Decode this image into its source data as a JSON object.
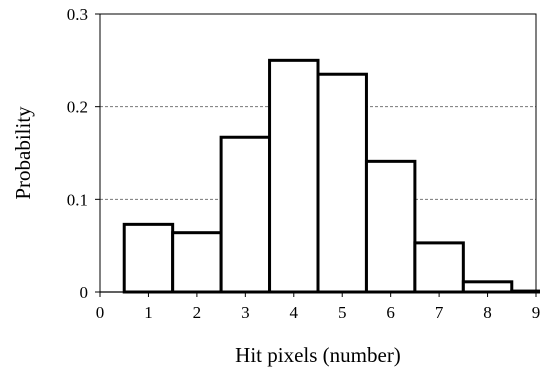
{
  "chart_data": {
    "type": "bar",
    "title": "",
    "xlabel": "Hit pixels (number)",
    "ylabel": "Probability",
    "xlim": [
      0,
      9
    ],
    "ylim": [
      0,
      0.3
    ],
    "grid": "horizontal-dashed",
    "legend": "none",
    "x_ticks": [
      "0",
      "1",
      "2",
      "3",
      "4",
      "5",
      "6",
      "7",
      "8",
      "9"
    ],
    "y_ticks": [
      "0",
      "0.1",
      "0.2",
      "0.3"
    ],
    "categories": [
      1,
      2,
      3,
      4,
      5,
      6,
      7,
      8,
      9
    ],
    "values": [
      0.073,
      0.064,
      0.167,
      0.25,
      0.235,
      0.141,
      0.053,
      0.011,
      0.001
    ],
    "bar_color": "#ffffff",
    "edge_color": "#000000"
  }
}
